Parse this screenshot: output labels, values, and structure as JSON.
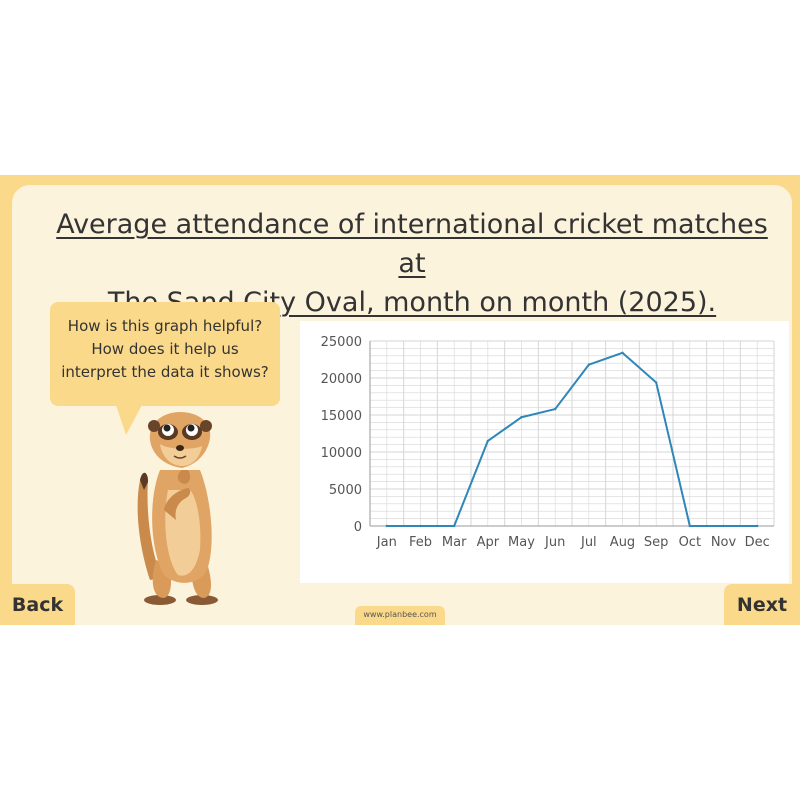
{
  "slide": {
    "title_line1": "Average attendance of international cricket matches at",
    "title_line2": "The Sand City Oval, month on month (2025).",
    "speech_line1": "How is this graph helpful?",
    "speech_line2": "How does it help us",
    "speech_line3": "interpret the data it shows?",
    "back_label": "Back",
    "next_label": "Next",
    "website": "www.planbee.com"
  },
  "colors": {
    "accent": "#fbd98a",
    "panel": "#fcf3dd",
    "line": "#2e86b9",
    "grid": "#d6d6d6"
  },
  "chart_data": {
    "type": "line",
    "title": "Average attendance of international cricket matches at The Sand City Oval, month on month (2025).",
    "categories": [
      "Jan",
      "Feb",
      "Mar",
      "Apr",
      "May",
      "Jun",
      "Jul",
      "Aug",
      "Sep",
      "Oct",
      "Nov",
      "Dec"
    ],
    "values": [
      0,
      0,
      0,
      11500,
      14700,
      15800,
      21800,
      23400,
      19400,
      0,
      0,
      0
    ],
    "ylim": [
      0,
      25000
    ],
    "yticks": [
      0,
      5000,
      10000,
      15000,
      20000,
      25000
    ],
    "ytick_labels": [
      "0",
      "5000",
      "10000",
      "15000",
      "20000",
      "25000"
    ],
    "grid": true,
    "minor_gridlines_per_major": 5,
    "xlabel": "",
    "ylabel": ""
  }
}
